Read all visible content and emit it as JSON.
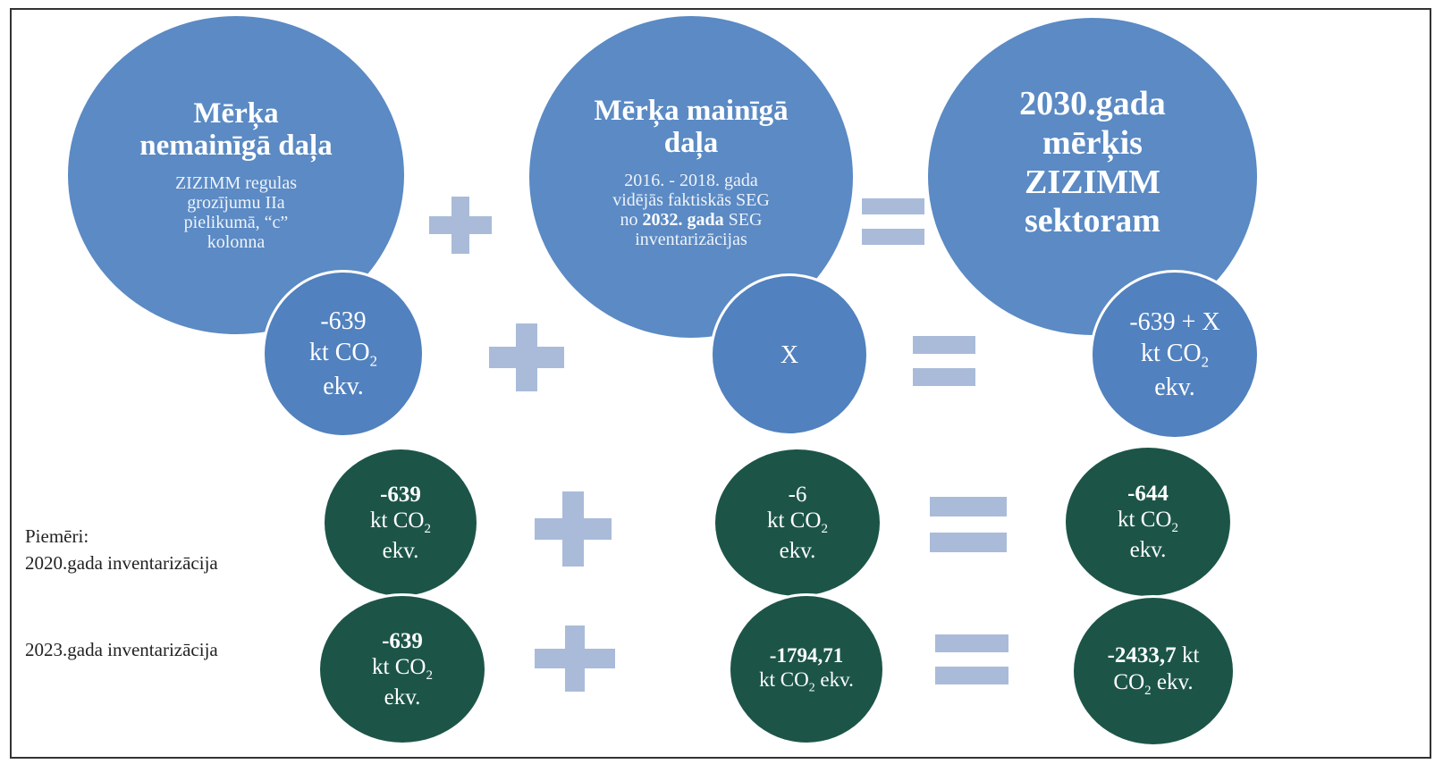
{
  "row_top": {
    "left": {
      "title_line1": "Mērķa",
      "title_line2": "nemainīgā daļa",
      "desc_line1": "ZIZIMM regulas",
      "desc_line2": "grozījumu IIa",
      "desc_line3": "pielikumā, “c”",
      "desc_line4": "kolonna"
    },
    "middle": {
      "title_line1": "Mērķa mainīgā",
      "title_line2": "daļa",
      "desc_line1": "2016. - 2018. gada",
      "desc_line2": "vidējās faktiskās SEG",
      "desc_line3_pre": "no ",
      "desc_line3_bold": "2032. gada",
      "desc_line3_post": " SEG",
      "desc_line4": "inventarizācijas"
    },
    "right": {
      "title_line1": "2030.gada",
      "title_line2": "mērķis",
      "title_line3": "ZIZIMM",
      "title_line4": "sektoram"
    }
  },
  "row_formula": {
    "left_value": "-639",
    "middle_value": "X",
    "right_value": "-639 + X",
    "unit_kt": "kt CO",
    "unit_sub": "2",
    "unit_ekv": "ekv."
  },
  "examples": {
    "intro_label": "Piemēri:",
    "row1_label": "2020.gada inventarizācija",
    "row2_label": "2023.gada inventarizācija",
    "row1": {
      "left_value": "-639",
      "middle_value": "-6",
      "right_value": "-644"
    },
    "row2": {
      "left_value": "-639",
      "middle_value": "-1794,71",
      "middle_unit": "kt CO",
      "middle_unit_post": " ekv.",
      "right_value": "-2433,7",
      "right_unit_inline": " kt",
      "right_unit_line2_pre": "CO",
      "right_unit_line2_post": " ekv."
    }
  },
  "colors": {
    "circle_blue": "#5B8AC4",
    "circle_green": "#1C5548",
    "operator": "#A9BBD9"
  },
  "icons": [
    "plus-icon",
    "equals-icon"
  ]
}
